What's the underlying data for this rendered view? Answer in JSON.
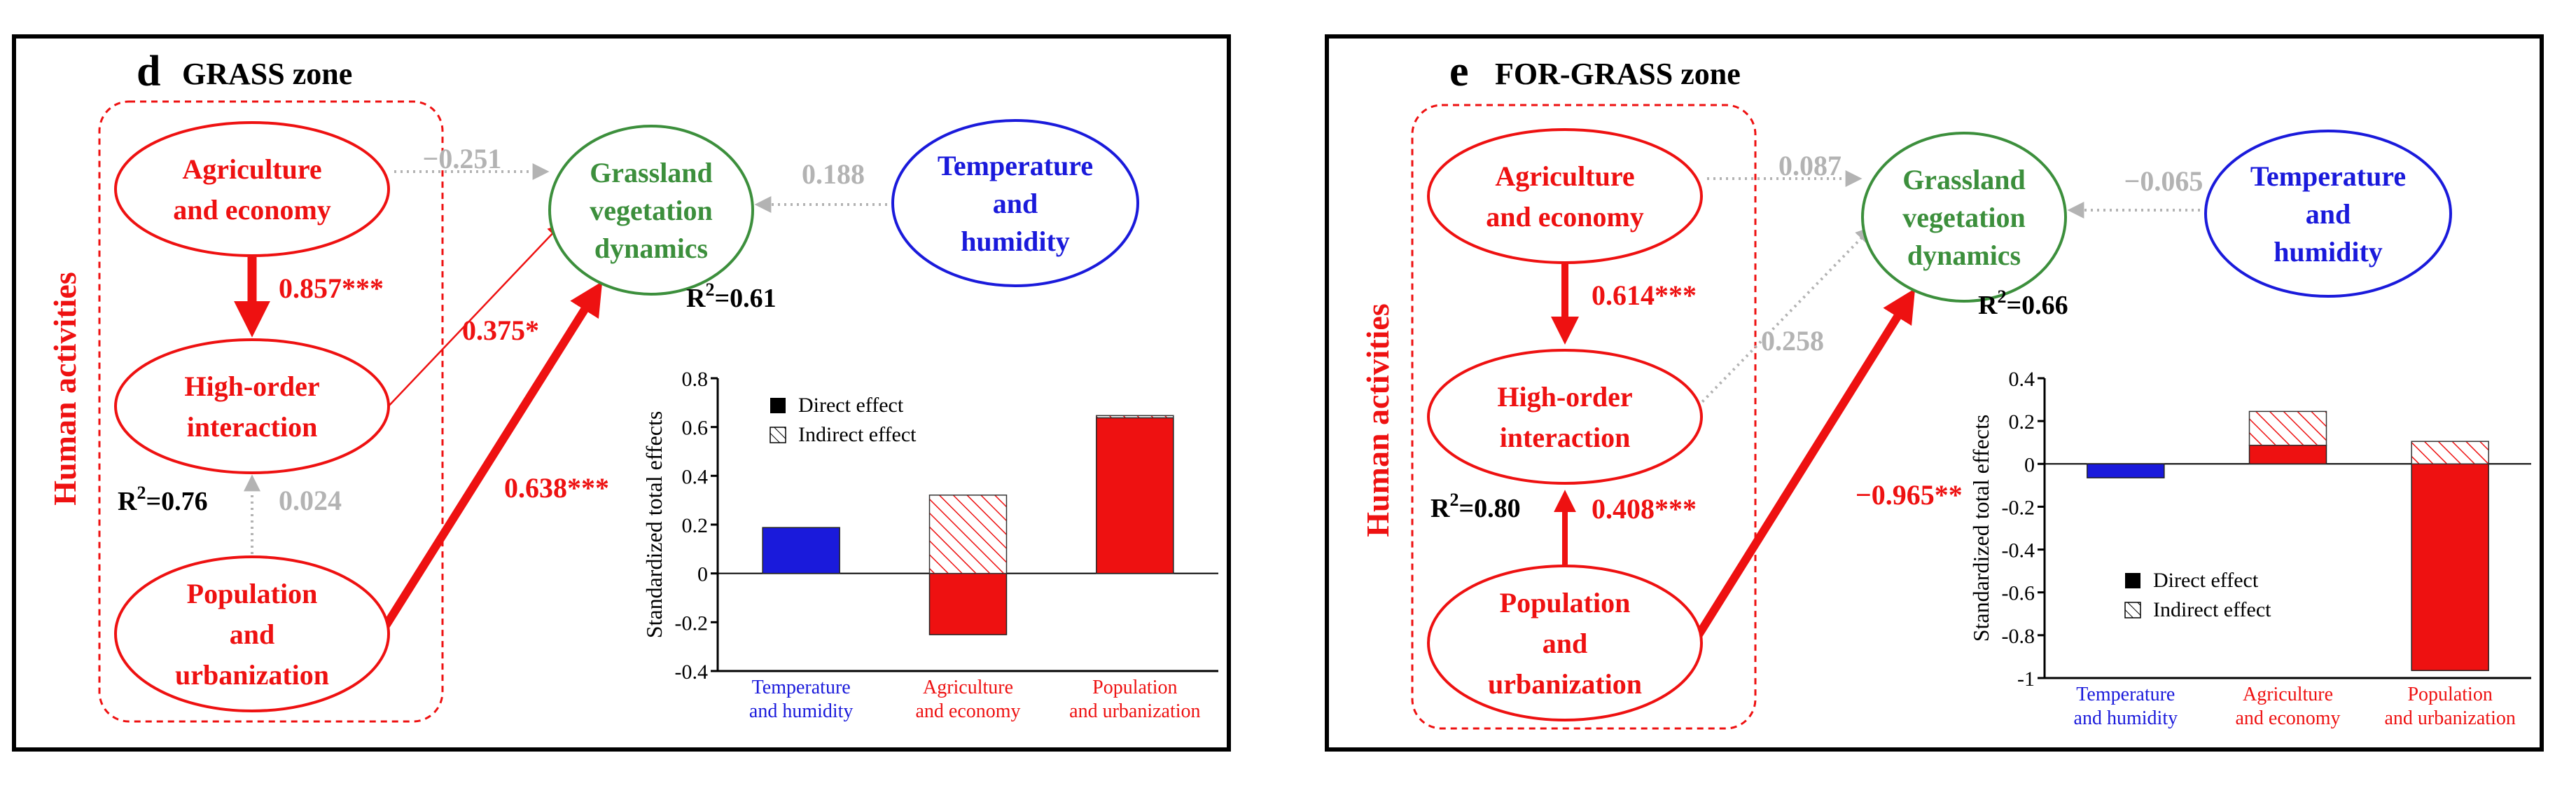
{
  "panels": [
    {
      "letter": "d",
      "title": "GRASS zone",
      "side_label": "Human activities",
      "nodes": {
        "agri": [
          "Agriculture",
          "and economy"
        ],
        "hoi": [
          "High-order",
          "interaction"
        ],
        "pop": [
          "Population",
          "and",
          "urbanization"
        ],
        "grass": [
          "Grassland",
          "vegetation",
          "dynamics"
        ],
        "temp": [
          "Temperature",
          "and",
          "humidity"
        ]
      },
      "paths": {
        "agri_grass": "−0.251",
        "temp_grass": "0.188",
        "agri_hoi": "0.857***",
        "hoi_grass": "0.375*",
        "pop_grass": "0.638***",
        "pop_hoi": "0.024"
      },
      "r2": {
        "grass": "0.61",
        "hoi": "0.76"
      },
      "chart_data": {
        "type": "bar",
        "ylabel": "Standardized total effects",
        "ylim": [
          -0.4,
          0.8
        ],
        "ytick_values": [
          -0.4,
          -0.2,
          0,
          0.2,
          0.4,
          0.6,
          0.8
        ],
        "ytick_labels": [
          "-0.4",
          "-0.2",
          "0",
          "0.2",
          "0.4",
          "0.6",
          "0.8"
        ],
        "categories": [
          [
            "Temperature",
            "and humidity"
          ],
          [
            "Agriculture",
            "and economy"
          ],
          [
            "Population",
            "and urbanization"
          ]
        ],
        "category_colors": [
          "#1a1adb",
          "#ee1111",
          "#ee1111"
        ],
        "series": [
          {
            "name": "Direct effect",
            "values": [
              0.188,
              -0.251,
              0.638
            ]
          },
          {
            "name": "Indirect effect",
            "values": [
              0,
              0.321,
              0.009
            ]
          }
        ],
        "legend": [
          "Direct effect",
          "Indirect effect"
        ],
        "legend_position": "top"
      }
    },
    {
      "letter": "e",
      "title": "FOR-GRASS zone",
      "side_label": "Human activities",
      "nodes": {
        "agri": [
          "Agriculture",
          "and economy"
        ],
        "hoi": [
          "High-order",
          "interaction"
        ],
        "pop": [
          "Population",
          "and",
          "urbanization"
        ],
        "grass": [
          "Grassland",
          "vegetation",
          "dynamics"
        ],
        "temp": [
          "Temperature",
          "and",
          "humidity"
        ]
      },
      "paths": {
        "agri_grass": "0.087",
        "temp_grass": "−0.065",
        "agri_hoi": "0.614***",
        "hoi_grass": "0.258",
        "pop_grass": "−0.965**",
        "pop_hoi": "0.408***"
      },
      "r2": {
        "grass": "0.66",
        "hoi": "0.80"
      },
      "chart_data": {
        "type": "bar",
        "ylabel": "Standardized total effects",
        "ylim": [
          -1,
          0.4
        ],
        "ytick_values": [
          -1,
          -0.8,
          -0.6,
          -0.4,
          -0.2,
          0,
          0.2,
          0.4
        ],
        "ytick_labels": [
          "-1",
          "-0.8",
          "-0.6",
          "-0.4",
          "-0.2",
          "0",
          "0.2",
          "0.4"
        ],
        "categories": [
          [
            "Temperature",
            "and humidity"
          ],
          [
            "Agriculture",
            "and economy"
          ],
          [
            "Population",
            "and urbanization"
          ]
        ],
        "category_colors": [
          "#1a1adb",
          "#ee1111",
          "#ee1111"
        ],
        "series": [
          {
            "name": "Direct effect",
            "values": [
              -0.065,
              0.087,
              -0.965
            ]
          },
          {
            "name": "Indirect effect",
            "values": [
              0,
              0.158,
              0.105
            ]
          }
        ],
        "legend": [
          "Direct effect",
          "Indirect effect"
        ],
        "legend_position": "bottom-center"
      }
    }
  ],
  "colors": {
    "red": "#ee1111",
    "blue": "#1a1adb",
    "green": "#3c8f3c",
    "gray": "#b3b3b3",
    "black": "#000000"
  }
}
